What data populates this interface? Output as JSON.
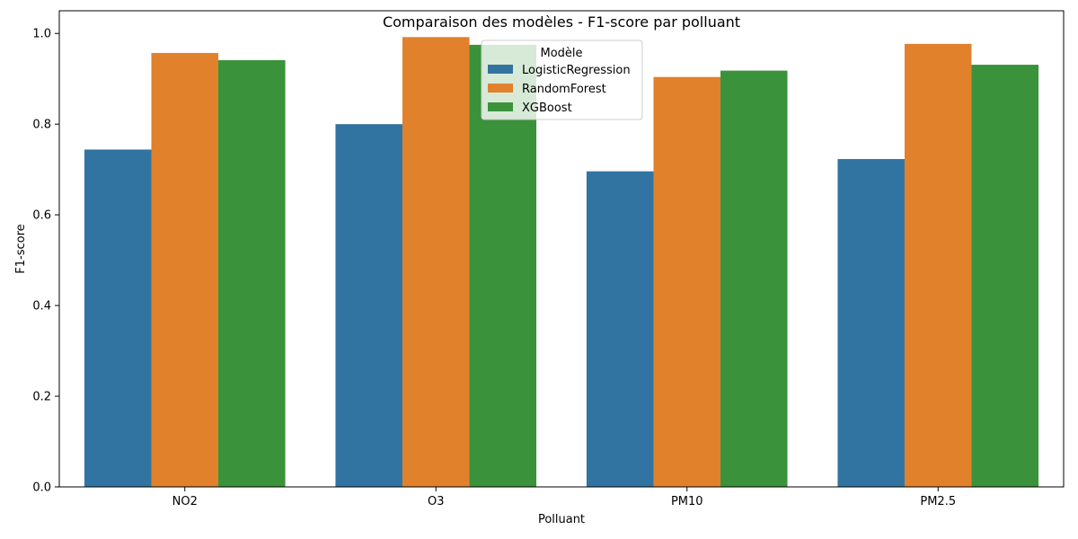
{
  "chart_data": {
    "type": "bar",
    "title": "Comparaison des modèles - F1-score par polluant",
    "xlabel": "Polluant",
    "ylabel": "F1-score",
    "categories": [
      "NO2",
      "O3",
      "PM10",
      "PM2.5"
    ],
    "ylim": [
      0,
      1.05
    ],
    "yticks": [
      "0.0",
      "0.2",
      "0.4",
      "0.6",
      "0.8",
      "1.0"
    ],
    "grid": false,
    "legend": {
      "title": "Modèle",
      "placement": "top-center"
    },
    "series": [
      {
        "name": "LogisticRegression",
        "color": "#3274a1",
        "values": [
          0.744,
          0.8,
          0.696,
          0.723
        ]
      },
      {
        "name": "RandomForest",
        "color": "#e1812c",
        "values": [
          0.957,
          0.992,
          0.904,
          0.977
        ]
      },
      {
        "name": "XGBoost",
        "color": "#3a923a",
        "values": [
          0.941,
          0.975,
          0.918,
          0.931
        ]
      }
    ]
  }
}
